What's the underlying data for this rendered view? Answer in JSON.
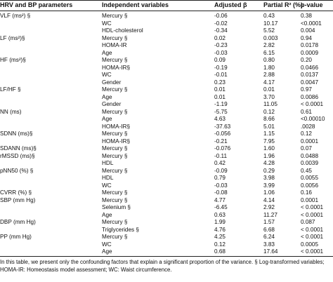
{
  "headers": {
    "param": "HRV and BP parameters",
    "var": "Independent variables",
    "beta": "Adjusted β",
    "r2": "Partial R² (%)",
    "p": "p-value"
  },
  "rows": [
    {
      "param": "VLF (ms²) §",
      "var": "Mercury §",
      "beta": "-0.06",
      "r2": "0.43",
      "p": "0.38"
    },
    {
      "param": "",
      "var": "WC",
      "beta": "-0.02",
      "r2": "10.17",
      "p": "<0.0001"
    },
    {
      "param": "",
      "var": "HDL-cholesterol",
      "beta": "-0.34",
      "r2": "5.52",
      "p": "0.004"
    },
    {
      "param": "LF (ms²)§",
      "var": "Mercury §",
      "beta": "0.02",
      "r2": "0.003",
      "p": "0.94"
    },
    {
      "param": "",
      "var": "HOMA-IR",
      "beta": "-0.23",
      "r2": "2.82",
      "p": "0.0178"
    },
    {
      "param": "",
      "var": "Age",
      "beta": "-0.03",
      "r2": "6.15",
      "p": "0.0009"
    },
    {
      "param": "HF (ms²)§",
      "var": "Mercury §",
      "beta": "0.09",
      "r2": "0.80",
      "p": "0.20"
    },
    {
      "param": "",
      "var": "HOMA-IR§",
      "beta": "-0.19",
      "r2": "1.80",
      "p": "0.0466"
    },
    {
      "param": "",
      "var": "WC",
      "beta": "-0.01",
      "r2": "2.88",
      "p": "0.0137"
    },
    {
      "param": "",
      "var": "Gender",
      "beta": "0.23",
      "r2": "4.17",
      "p": "0.0047"
    },
    {
      "param": "LF/HF §",
      "var": "Mercury §",
      "beta": "0.01",
      "r2": "0.01",
      "p": "0.97"
    },
    {
      "param": "",
      "var": "Age",
      "beta": "0.01",
      "r2": "3.70",
      "p": "0.0086"
    },
    {
      "param": "",
      "var": "Gender",
      "beta": "-1.19",
      "r2": "11.05",
      "p": "< 0.0001"
    },
    {
      "param": "NN (ms)",
      "var": "Mercury §",
      "beta": "-5.75",
      "r2": "0.12",
      "p": "0.61"
    },
    {
      "param": "",
      "var": "Age",
      "beta": "4.63",
      "r2": "8.66",
      "p": "<0.00010"
    },
    {
      "param": "",
      "var": "HOMA-IR§",
      "beta": "-37.63",
      "r2": "5.01",
      "p": ".0028"
    },
    {
      "param": "SDNN (ms)§",
      "var": "Mercury §",
      "beta": "-0.056",
      "r2": "1.15",
      "p": "0.12"
    },
    {
      "param": "",
      "var": "HOMA-IR§",
      "beta": "-0.21",
      "r2": "7.95",
      "p": "0.0001"
    },
    {
      "param": "SDANN (ms)§",
      "var": "Mercury §",
      "beta": "-0.076",
      "r2": "1.60",
      "p": "0.07"
    },
    {
      "param": "rMSSD (ms)§",
      "var": "Mercury §",
      "beta": "-0.11",
      "r2": "1.96",
      "p": "0.0488"
    },
    {
      "param": "",
      "var": "HDL",
      "beta": "0.42",
      "r2": "4.28",
      "p": "0.0039"
    },
    {
      "param": "pNN50 (%) §",
      "var": "Mercury §",
      "beta": "-0.09",
      "r2": "0.29",
      "p": "0.45"
    },
    {
      "param": "",
      "var": "HDL",
      "beta": "0.79",
      "r2": "3.98",
      "p": "0.0055"
    },
    {
      "param": "",
      "var": "WC",
      "beta": "-0.03",
      "r2": "3.99",
      "p": "0.0056"
    },
    {
      "param": "CVRR (%) §",
      "var": "Mercury §",
      "beta": "-0.08",
      "r2": "1.06",
      "p": "0.16"
    },
    {
      "param": "SBP (mm Hg)",
      "var": "Mercury §",
      "beta": "4.77",
      "r2": "4.14",
      "p": "0.0001"
    },
    {
      "param": "",
      "var": "Selenium §",
      "beta": "-6.45",
      "r2": "2.92",
      "p": "< 0.0001"
    },
    {
      "param": "",
      "var": "Age",
      "beta": "0.63",
      "r2": "11.27",
      "p": "< 0.0001"
    },
    {
      "param": "DBP (mm Hg)",
      "var": "Mercury §",
      "beta": "1.99",
      "r2": "1.57",
      "p": "0.087"
    },
    {
      "param": "",
      "var": "Triglycerides §",
      "beta": "4.76",
      "r2": "6.68",
      "p": "< 0.0001"
    },
    {
      "param": "PP (mm Hg)",
      "var": "Mercury §",
      "beta": "4.25",
      "r2": "6.24",
      "p": "< 0.0001"
    },
    {
      "param": "",
      "var": "WC",
      "beta": "0.12",
      "r2": "3.83",
      "p": "0.0005"
    },
    {
      "param": "",
      "var": "Age",
      "beta": "0.68",
      "r2": "17.64",
      "p": "< 0.0001"
    }
  ],
  "footer": "In this table, we present only the confounding factors that explain a significant proportion of the variance. § Log-transformed variables; HOMA-IR: Homeostasis model assessment; WC: Waist circumference."
}
